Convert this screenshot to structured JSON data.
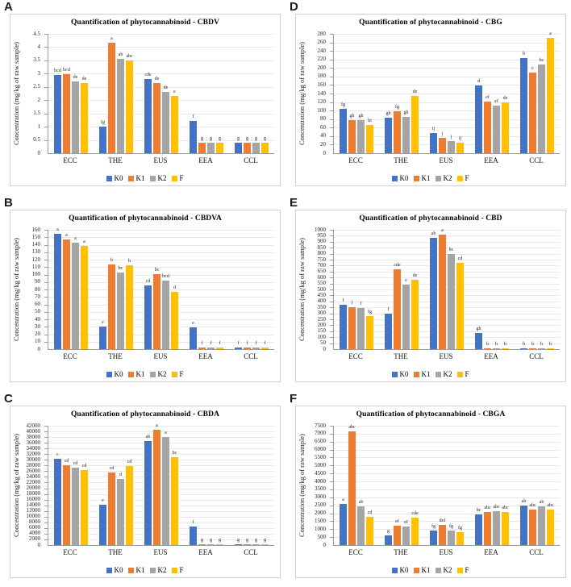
{
  "figure": {
    "background": "#ffffff",
    "ylabel": "Concentration (mg/kg of raw sample)",
    "categories": [
      "ECC",
      "THE",
      "EUS",
      "EEA",
      "CCL"
    ],
    "legend": [
      "K0",
      "K1",
      "K2",
      "F"
    ],
    "series_colors": {
      "K0": "#4472C4",
      "K1": "#ED7D31",
      "K2": "#A5A5A5",
      "F": "#FFC000"
    },
    "gridline_color": "#e9e9e9",
    "axis_color": "#9b9b9b",
    "panel_letters": [
      "A",
      "B",
      "C",
      "D",
      "E",
      "F"
    ]
  },
  "chart_data": [
    {
      "panel": "A",
      "type": "bar",
      "title": "Quantification of phytocannabinoid - CBDV",
      "ylabel": "Concentration (mg/kg of raw sample)",
      "categories": [
        "ECC",
        "THE",
        "EUS",
        "EEA",
        "CCL"
      ],
      "ylim": [
        0,
        4.5
      ],
      "ytick_step": 0.5,
      "grid": true,
      "legend_position": "bottom",
      "series": [
        {
          "name": "K0",
          "values": [
            2.95,
            1.0,
            2.81,
            1.23,
            0.41
          ],
          "sig_labels": [
            "bcd",
            "fg",
            "cde",
            "f",
            "g"
          ]
        },
        {
          "name": "K1",
          "values": [
            2.97,
            4.17,
            2.65,
            0.41,
            0.41
          ],
          "sig_labels": [
            "bcd",
            "a",
            "de",
            "g",
            "g"
          ]
        },
        {
          "name": "K2",
          "values": [
            2.71,
            3.57,
            2.3,
            0.41,
            0.41
          ],
          "sig_labels": [
            "de",
            "ab",
            "de",
            "g",
            "g"
          ]
        },
        {
          "name": "F",
          "values": [
            2.64,
            3.51,
            2.16,
            0.41,
            0.41
          ],
          "sig_labels": [
            "de",
            "abc",
            "e",
            "g",
            "g"
          ]
        }
      ]
    },
    {
      "panel": "B",
      "type": "bar",
      "title": "Quantification of phytocannabinoid - CBDVA",
      "ylabel": "Concentration (mg/kg of raw sample)",
      "categories": [
        "ECC",
        "THE",
        "EUS",
        "EEA",
        "CCL"
      ],
      "ylim": [
        0,
        160
      ],
      "ytick_step": 10,
      "grid": true,
      "legend_position": "bottom",
      "series": [
        {
          "name": "K0",
          "values": [
            155,
            30,
            85,
            29,
            2
          ],
          "sig_labels": [
            "a",
            "e",
            "cd",
            "e",
            "f"
          ]
        },
        {
          "name": "K1",
          "values": [
            147,
            113,
            101,
            2,
            2
          ],
          "sig_labels": [
            "a",
            "b",
            "bc",
            "f",
            "f"
          ]
        },
        {
          "name": "K2",
          "values": [
            143,
            103,
            92,
            2,
            2
          ],
          "sig_labels": [
            "a",
            "bc",
            "bcd",
            "f",
            "f"
          ]
        },
        {
          "name": "F",
          "values": [
            138,
            112,
            77,
            2,
            2
          ],
          "sig_labels": [
            "a",
            "b",
            "d",
            "f",
            "f"
          ]
        }
      ]
    },
    {
      "panel": "C",
      "type": "bar",
      "title": "Quantification of phytocannabinoid - CBDA",
      "ylabel": "Concentration (mg/kg of raw sample)",
      "categories": [
        "ECC",
        "THE",
        "EUS",
        "EEA",
        "CCL"
      ],
      "ylim": [
        0,
        42000
      ],
      "ytick_step": 2000,
      "grid": true,
      "legend_position": "bottom",
      "series": [
        {
          "name": "K0",
          "values": [
            30500,
            14100,
            36700,
            6500,
            200
          ],
          "sig_labels": [
            "c",
            "e",
            "ab",
            "f",
            "g"
          ]
        },
        {
          "name": "K1",
          "values": [
            28000,
            25500,
            40700,
            250,
            200
          ],
          "sig_labels": [
            "cd",
            "cd",
            "a",
            "g",
            "g"
          ]
        },
        {
          "name": "K2",
          "values": [
            27300,
            23400,
            38000,
            250,
            200
          ],
          "sig_labels": [
            "cd",
            "d",
            "a",
            "g",
            "g"
          ]
        },
        {
          "name": "F",
          "values": [
            26300,
            27800,
            30800,
            250,
            200
          ],
          "sig_labels": [
            "cd",
            "cd",
            "bc",
            "g",
            "g"
          ]
        }
      ]
    },
    {
      "panel": "D",
      "type": "bar",
      "title": "Quantification of phytocannabinoid - CBG",
      "ylabel": "Concentration (mg/kg of raw sample)",
      "categories": [
        "ECC",
        "THE",
        "EUS",
        "EEA",
        "CCL"
      ],
      "ylim": [
        0,
        280
      ],
      "ytick_step": 20,
      "grid": true,
      "legend_position": "bottom",
      "series": [
        {
          "name": "K0",
          "values": [
            104,
            84,
            47,
            159,
            224
          ],
          "sig_labels": [
            "fg",
            "gh",
            "ij",
            "d",
            "b"
          ]
        },
        {
          "name": "K1",
          "values": [
            78,
            99,
            36,
            122,
            190
          ],
          "sig_labels": [
            "gh",
            "fg",
            "j",
            "ef",
            "c"
          ]
        },
        {
          "name": "K2",
          "values": [
            78,
            85,
            28,
            111,
            208
          ],
          "sig_labels": [
            "gh",
            "gh",
            "j",
            "ef",
            "bc"
          ]
        },
        {
          "name": "F",
          "values": [
            66,
            134,
            25,
            119,
            271
          ],
          "sig_labels": [
            "hi",
            "de",
            "ij",
            "de",
            "a"
          ]
        }
      ]
    },
    {
      "panel": "E",
      "type": "bar",
      "title": "Quantification of phytocannabinoid - CBD",
      "ylabel": "Concentration (mg/kg of raw sample)",
      "categories": [
        "ECC",
        "THE",
        "EUS",
        "EEA",
        "CCL"
      ],
      "ylim": [
        0,
        1000
      ],
      "ytick_step": 50,
      "grid": true,
      "legend_position": "bottom",
      "series": [
        {
          "name": "K0",
          "values": [
            372,
            298,
            935,
            138,
            3
          ],
          "sig_labels": [
            "f",
            "f",
            "ab",
            "gh",
            "h"
          ]
        },
        {
          "name": "K1",
          "values": [
            350,
            668,
            960,
            3,
            3
          ],
          "sig_labels": [
            "f",
            "cde",
            "a",
            "h",
            "h"
          ]
        },
        {
          "name": "K2",
          "values": [
            345,
            540,
            798,
            3,
            3
          ],
          "sig_labels": [
            "f",
            "e",
            "bc",
            "h",
            "h"
          ]
        },
        {
          "name": "F",
          "values": [
            278,
            580,
            722,
            3,
            3
          ],
          "sig_labels": [
            "fg",
            "de",
            "cd",
            "h",
            "h"
          ]
        }
      ]
    },
    {
      "panel": "F",
      "type": "bar",
      "title": "Quantification of phytocannabinoid - CBGA",
      "ylabel": "Concentration (mg/kg of raw sample)",
      "categories": [
        "ECC",
        "THE",
        "EUS",
        "EEA",
        "CCL"
      ],
      "ylim": [
        0,
        7500
      ],
      "ytick_step": 500,
      "grid": true,
      "legend_position": "bottom",
      "series": [
        {
          "name": "K0",
          "values": [
            2580,
            620,
            910,
            1930,
            2470
          ],
          "sig_labels": [
            "a",
            "g",
            "fg",
            "bc",
            "ab"
          ]
        },
        {
          "name": "K1",
          "values": [
            7170,
            1240,
            1250,
            2100,
            2250
          ],
          "sig_labels": [
            "abc",
            "ef",
            "def",
            "abc",
            "abc"
          ]
        },
        {
          "name": "K2",
          "values": [
            2450,
            1170,
            920,
            2130,
            2420
          ],
          "sig_labels": [
            "ab",
            "ef",
            "fg",
            "abc",
            "ab"
          ]
        },
        {
          "name": "F",
          "values": [
            1790,
            1730,
            800,
            2090,
            2210
          ],
          "sig_labels": [
            "cd",
            "cde",
            "fg",
            "abc",
            "abc"
          ]
        }
      ]
    }
  ]
}
